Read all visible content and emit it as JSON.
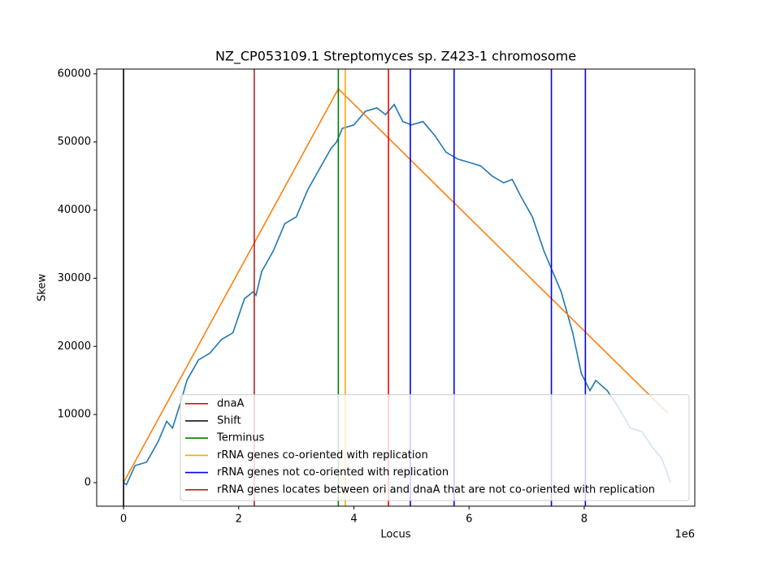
{
  "chart_data": {
    "type": "line",
    "title": "NZ_CP053109.1 Streptomyces sp. Z423-1 chromosome",
    "x_label": "Locus",
    "y_label": "Skew",
    "x_offset_label": "1e6",
    "xlim": [
      -466000,
      9920000
    ],
    "ylim": [
      -3460,
      60700
    ],
    "xticks": [
      {
        "value": 0,
        "label": "0"
      },
      {
        "value": 2000000,
        "label": "2"
      },
      {
        "value": 4000000,
        "label": "4"
      },
      {
        "value": 6000000,
        "label": "6"
      },
      {
        "value": 8000000,
        "label": "8"
      }
    ],
    "yticks": [
      0,
      10000,
      20000,
      30000,
      40000,
      50000,
      60000
    ],
    "legend_position": "lower right",
    "series": [
      {
        "color": "#1f77b4",
        "x": [
          0,
          50000,
          200000,
          400000,
          600000,
          750000,
          850000,
          1000000,
          1100000,
          1300000,
          1500000,
          1700000,
          1900000,
          2100000,
          2250000,
          2300000,
          2400000,
          2600000,
          2800000,
          3000000,
          3200000,
          3400000,
          3600000,
          3700000,
          3800000,
          4000000,
          4200000,
          4400000,
          4550000,
          4700000,
          4850000,
          5000000,
          5200000,
          5400000,
          5600000,
          5800000,
          6000000,
          6200000,
          6400000,
          6600000,
          6750000,
          6900000,
          7100000,
          7300000,
          7450000,
          7600000,
          7800000,
          7950000,
          8100000,
          8200000,
          8400000,
          8600000,
          8800000,
          9000000,
          9200000,
          9350000,
          9500000
        ],
        "values": [
          0,
          -300,
          2500,
          3000,
          6000,
          9000,
          8000,
          12000,
          15000,
          18000,
          19000,
          21000,
          22000,
          27000,
          28000,
          27500,
          31000,
          34000,
          38000,
          39000,
          43000,
          46000,
          49000,
          50000,
          52000,
          52500,
          54500,
          55000,
          54000,
          55500,
          53000,
          52500,
          53000,
          51000,
          48500,
          47500,
          47000,
          46500,
          45000,
          44000,
          44500,
          42000,
          39000,
          34000,
          31000,
          28000,
          22000,
          16000,
          13500,
          15000,
          13500,
          11000,
          8000,
          7500,
          5000,
          3500,
          0
        ]
      },
      {
        "color": "#ff7f0e",
        "x": [
          0,
          3730000,
          9450000
        ],
        "values": [
          0,
          57800,
          10200
        ]
      }
    ],
    "vlines": [
      {
        "name": "dnaA",
        "color": "#ff0000",
        "x": [
          4600000
        ]
      },
      {
        "name": "Shift",
        "color": "#000000",
        "x": [
          0
        ]
      },
      {
        "name": "Terminus",
        "color": "#008000",
        "x": [
          3730000
        ]
      },
      {
        "name": "rRNA genes co-oriented with replication",
        "color": "#ffa500",
        "x": [
          3850000
        ]
      },
      {
        "name": "rRNA genes not co-oriented with replication",
        "color": "#0000ff",
        "x": [
          4980000,
          5740000,
          7430000,
          8020000
        ]
      },
      {
        "name": "rRNA genes locates between ori and dnaA that are not co-oriented with replication",
        "color": "#b22222",
        "x": [
          2270000
        ]
      }
    ]
  }
}
